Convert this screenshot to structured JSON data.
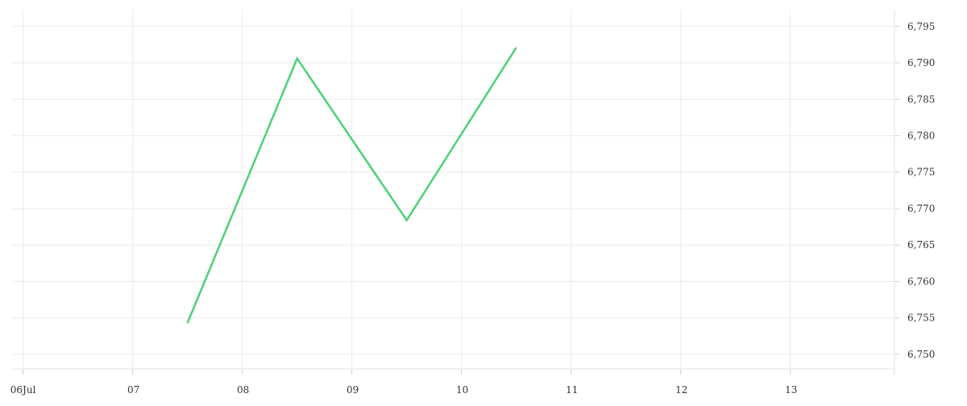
{
  "chart_data": {
    "type": "line",
    "title": "",
    "xlabel": "",
    "ylabel": "",
    "x_ticks": [
      "06Jul",
      "07",
      "08",
      "09",
      "10",
      "11",
      "12",
      "13"
    ],
    "x_tick_values": [
      6,
      7,
      8,
      9,
      10,
      11,
      12,
      13
    ],
    "xlim": [
      5.9,
      13.95
    ],
    "y_ticks": [
      "6,750",
      "6,755",
      "6,760",
      "6,765",
      "6,770",
      "6,775",
      "6,780",
      "6,785",
      "6,790",
      "6,795"
    ],
    "y_tick_values": [
      6750,
      6755,
      6760,
      6765,
      6770,
      6775,
      6780,
      6785,
      6790,
      6795
    ],
    "ylim": [
      6748,
      6797.3
    ],
    "grid": true,
    "y_axis_position": "right",
    "series": [
      {
        "color": "#4cd07a",
        "x": [
          7.5,
          8.5,
          9.5,
          10.5
        ],
        "values": [
          6754.3,
          6790.6,
          6768.4,
          6792.1
        ]
      }
    ]
  }
}
